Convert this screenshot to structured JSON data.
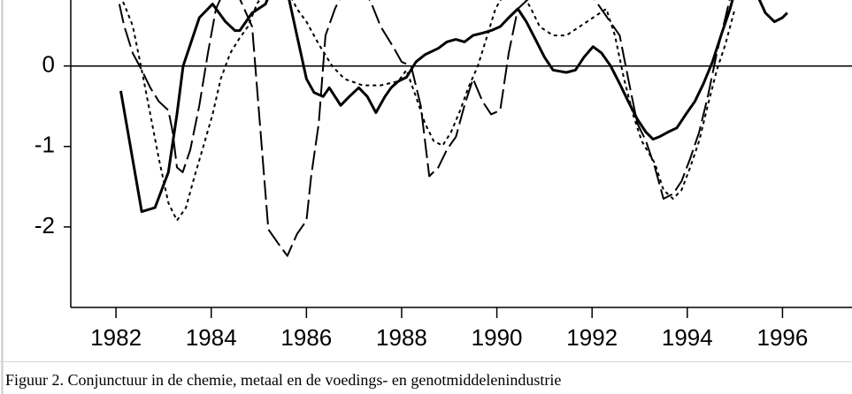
{
  "chart_data": {
    "type": "line",
    "caption": "Figuur 2. Conjunctuur in de chemie, metaal en de voedings- en genotmiddelenindustrie",
    "xlim": [
      1981.05,
      1997.46
    ],
    "ylim": [
      -3.0,
      0.82
    ],
    "xticks": [
      1982,
      1984,
      1986,
      1988,
      1990,
      1992,
      1994,
      1996
    ],
    "yticks": [
      0,
      -1,
      -2
    ],
    "hline": 0,
    "series": [
      {
        "color": "#000000",
        "style": "solid",
        "x": [
          1982.1,
          1982.54,
          1982.82,
          1983.1,
          1983.28,
          1983.41,
          1983.75,
          1984.03,
          1984.3,
          1984.5,
          1984.6,
          1984.86,
          1985.14,
          1985.3,
          1985.5,
          1985.8,
          1986.0,
          1986.16,
          1986.35,
          1986.48,
          1986.72,
          1986.9,
          1987.1,
          1987.28,
          1987.46,
          1987.65,
          1987.78,
          1987.93,
          1988.1,
          1988.3,
          1988.49,
          1988.77,
          1988.95,
          1989.14,
          1989.32,
          1989.5,
          1989.7,
          1989.88,
          1990.07,
          1990.25,
          1990.44,
          1990.62,
          1990.81,
          1991.0,
          1991.18,
          1991.46,
          1991.65,
          1991.83,
          1992.02,
          1992.2,
          1992.39,
          1992.58,
          1992.76,
          1992.95,
          1993.13,
          1993.28,
          1993.41,
          1993.6,
          1993.78,
          1993.97,
          1994.16,
          1994.34,
          1994.53,
          1994.71,
          1994.9,
          1995.0,
          1995.3,
          1995.64,
          1995.83,
          1996.0,
          1996.1
        ],
        "values": [
          -0.31,
          -1.81,
          -1.76,
          -1.32,
          -0.6,
          0,
          0.6,
          0.77,
          0.55,
          0.44,
          0.44,
          0.66,
          0.77,
          1.0,
          1.2,
          0.38,
          -0.16,
          -0.33,
          -0.38,
          -0.27,
          -0.49,
          -0.38,
          -0.27,
          -0.38,
          -0.58,
          -0.38,
          -0.27,
          -0.19,
          -0.14,
          0.05,
          0.14,
          0.22,
          0.3,
          0.33,
          0.3,
          0.38,
          0.41,
          0.44,
          0.49,
          0.6,
          0.71,
          0.55,
          0.33,
          0.11,
          -0.05,
          -0.08,
          -0.05,
          0.11,
          0.24,
          0.16,
          0,
          -0.22,
          -0.44,
          -0.66,
          -0.82,
          -0.91,
          -0.88,
          -0.82,
          -0.77,
          -0.6,
          -0.44,
          -0.22,
          0.05,
          0.38,
          0.71,
          0.93,
          1.1,
          0.66,
          0.55,
          0.6,
          0.66
        ]
      },
      {
        "color": "#000000",
        "style": "dashed",
        "x": [
          1982.07,
          1982.17,
          1982.35,
          1982.54,
          1982.72,
          1982.9,
          1983.1,
          1983.19,
          1983.28,
          1983.4,
          1983.56,
          1983.75,
          1983.93,
          1984.1,
          1984.4,
          1984.86,
          1985.2,
          1985.4,
          1985.6,
          1985.8,
          1986.0,
          1986.1,
          1986.26,
          1986.4,
          1986.6,
          1987.0,
          1987.37,
          1987.56,
          1987.84,
          1988.0,
          1988.2,
          1988.4,
          1988.58,
          1988.77,
          1988.95,
          1989.14,
          1989.32,
          1989.5,
          1989.7,
          1989.88,
          1990.07,
          1990.25,
          1990.44,
          1991.5,
          1992.58,
          1992.76,
          1992.95,
          1993.13,
          1993.32,
          1993.5,
          1993.7,
          1993.88,
          1994.06,
          1994.25,
          1994.43,
          1994.62,
          1994.8,
          1995.0
        ],
        "values": [
          0.77,
          0.5,
          0.16,
          -0.05,
          -0.27,
          -0.44,
          -0.55,
          -0.82,
          -1.26,
          -1.32,
          -1.04,
          -0.49,
          0.16,
          0.71,
          1.1,
          0.49,
          -2.03,
          -2.2,
          -2.36,
          -2.09,
          -1.92,
          -1.37,
          -0.71,
          0.38,
          0.71,
          1.2,
          0.77,
          0.49,
          0.22,
          0.05,
          0,
          -0.49,
          -1.37,
          -1.26,
          -1.04,
          -0.88,
          -0.49,
          -0.16,
          -0.44,
          -0.6,
          -0.55,
          0.16,
          0.71,
          1.3,
          0.38,
          -0.16,
          -0.71,
          -0.93,
          -1.26,
          -1.65,
          -1.59,
          -1.43,
          -1.15,
          -0.82,
          -0.38,
          0.16,
          0.6,
          1.1
        ]
      },
      {
        "color": "#000000",
        "style": "dotted",
        "x": [
          1982.0,
          1982.17,
          1982.35,
          1982.54,
          1982.72,
          1982.9,
          1983.1,
          1983.28,
          1983.47,
          1983.65,
          1983.84,
          1984.03,
          1984.2,
          1984.4,
          1984.58,
          1984.77,
          1984.96,
          1985.4,
          1985.8,
          1986.0,
          1986.26,
          1986.54,
          1986.8,
          1987.18,
          1987.56,
          1987.93,
          1988.1,
          1988.3,
          1988.49,
          1988.67,
          1988.86,
          1989.04,
          1989.23,
          1989.4,
          1989.6,
          1989.8,
          1989.97,
          1990.35,
          1990.72,
          1990.9,
          1991.18,
          1991.46,
          1991.74,
          1992.02,
          1992.3,
          1992.48,
          1992.67,
          1992.86,
          1993.04,
          1993.32,
          1993.5,
          1993.7,
          1993.88,
          1994.06,
          1994.25,
          1994.43,
          1994.62,
          1994.8,
          1995.0
        ],
        "values": [
          0.95,
          0.77,
          0.5,
          -0.05,
          -0.6,
          -1.15,
          -1.7,
          -1.92,
          -1.76,
          -1.37,
          -0.99,
          -0.6,
          -0.16,
          0.16,
          0.33,
          0.49,
          0.77,
          1.2,
          0.71,
          0.55,
          0.27,
          0,
          -0.16,
          -0.24,
          -0.24,
          -0.19,
          -0.05,
          -0.38,
          -0.71,
          -0.93,
          -0.99,
          -0.82,
          -0.55,
          -0.27,
          0,
          0.38,
          0.71,
          1.1,
          0.71,
          0.49,
          0.38,
          0.38,
          0.49,
          0.6,
          0.71,
          0.38,
          -0.16,
          -0.6,
          -0.93,
          -1.21,
          -1.54,
          -1.65,
          -1.54,
          -1.26,
          -0.93,
          -0.49,
          -0.05,
          0.27,
          0.71
        ]
      }
    ]
  }
}
